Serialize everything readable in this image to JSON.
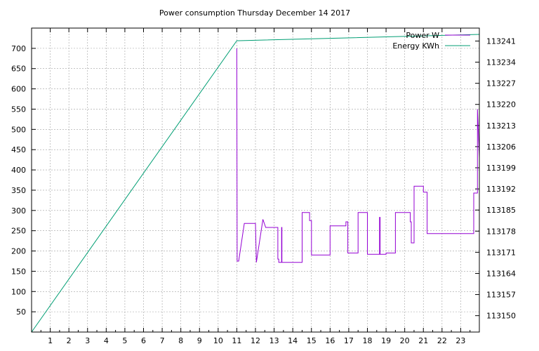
{
  "chart_data": {
    "type": "line",
    "title": "Power consumption Thursday December 14 2017",
    "xlabel": "",
    "ylabel": "",
    "y2label": "",
    "grid": true,
    "legend_position": "top-right",
    "xlim": [
      0,
      24
    ],
    "ylim": [
      0,
      750
    ],
    "y2lim": [
      113144.57,
      113245.29
    ],
    "x_ticks": [
      1,
      2,
      3,
      4,
      5,
      6,
      7,
      8,
      9,
      10,
      11,
      12,
      13,
      14,
      15,
      16,
      17,
      18,
      19,
      20,
      21,
      22,
      23
    ],
    "y_ticks": [
      50,
      100,
      150,
      200,
      250,
      300,
      350,
      400,
      450,
      500,
      550,
      600,
      650,
      700
    ],
    "y2_ticks": [
      113150,
      113157,
      113164,
      113171,
      113178,
      113185,
      113192,
      113199,
      113206,
      113213,
      113220,
      113227,
      113234,
      113241
    ],
    "series": [
      {
        "name": "Power W",
        "axis": "left",
        "color": "#9400d3",
        "step": true,
        "x": [
          11.0,
          11.02,
          11.04,
          11.1,
          11.4,
          11.4,
          12.0,
          12.05,
          12.05,
          12.4,
          12.4,
          12.55,
          12.55,
          13.2,
          13.2,
          13.25,
          13.25,
          13.4,
          13.4,
          13.42,
          13.42,
          14.5,
          14.5,
          14.9,
          14.9,
          15.0,
          15.0,
          16.0,
          16.0,
          16.85,
          16.85,
          16.95,
          16.95,
          17.5,
          17.5,
          18.0,
          18.0,
          18.65,
          18.65,
          18.68,
          18.68,
          19.0,
          19.0,
          19.5,
          19.5,
          20.3,
          20.3,
          20.35,
          20.35,
          20.5,
          20.5,
          21.0,
          21.0,
          21.2,
          21.2,
          23.7,
          23.7,
          23.9,
          23.9,
          24.0
        ],
        "y": [
          700,
          175,
          175,
          175,
          268,
          268,
          268,
          172,
          172,
          278,
          278,
          258,
          258,
          258,
          180,
          180,
          172,
          172,
          258,
          258,
          172,
          172,
          295,
          295,
          275,
          275,
          190,
          190,
          262,
          262,
          272,
          272,
          195,
          195,
          295,
          295,
          192,
          192,
          283,
          283,
          192,
          192,
          195,
          195,
          295,
          295,
          272,
          272,
          220,
          220,
          360,
          360,
          345,
          345,
          243,
          243,
          343,
          343,
          550,
          430
        ]
      },
      {
        "name": "Energy KWh",
        "axis": "right",
        "color": "#009e73",
        "x": [
          0,
          11.0,
          11.1,
          24.0
        ],
        "y": [
          113144.57,
          113241.1,
          113241.1,
          113243.2
        ]
      }
    ]
  }
}
